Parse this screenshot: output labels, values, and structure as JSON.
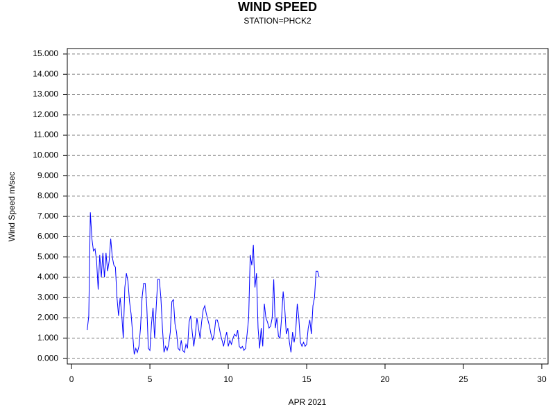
{
  "chart_data": {
    "type": "line",
    "title": "WIND SPEED",
    "subtitle": "STATION=PHCK2",
    "x_label": "APR 2021",
    "y_label": "Wind Speed m/sec",
    "color": "#0000ff",
    "grid": true,
    "x": [
      1.0,
      1.1,
      1.2,
      1.3,
      1.4,
      1.5,
      1.6,
      1.7,
      1.8,
      1.9,
      2.0,
      2.1,
      2.2,
      2.3,
      2.4,
      2.5,
      2.6,
      2.7,
      2.8,
      2.9,
      3.0,
      3.1,
      3.2,
      3.3,
      3.4,
      3.5,
      3.6,
      3.7,
      3.8,
      3.9,
      4.0,
      4.1,
      4.2,
      4.3,
      4.4,
      4.5,
      4.6,
      4.7,
      4.8,
      4.9,
      5.0,
      5.1,
      5.2,
      5.3,
      5.4,
      5.5,
      5.6,
      5.7,
      5.8,
      5.9,
      6.0,
      6.1,
      6.2,
      6.3,
      6.4,
      6.5,
      6.6,
      6.7,
      6.8,
      6.9,
      7.0,
      7.1,
      7.2,
      7.3,
      7.4,
      7.5,
      7.6,
      7.7,
      7.8,
      7.9,
      8.0,
      8.1,
      8.2,
      8.3,
      8.4,
      8.5,
      8.6,
      8.7,
      8.8,
      8.9,
      9.0,
      9.1,
      9.2,
      9.3,
      9.4,
      9.5,
      9.6,
      9.7,
      9.8,
      9.9,
      10.0,
      10.1,
      10.2,
      10.3,
      10.4,
      10.5,
      10.6,
      10.7,
      10.8,
      10.9,
      11.0,
      11.1,
      11.2,
      11.3,
      11.4,
      11.5,
      11.6,
      11.7,
      11.8,
      11.9,
      12.0,
      12.1,
      12.2,
      12.3,
      12.4,
      12.5,
      12.6,
      12.7,
      12.8,
      12.9,
      13.0,
      13.1,
      13.2,
      13.3,
      13.4,
      13.5,
      13.6,
      13.7,
      13.8,
      13.9,
      14.0,
      14.1,
      14.2,
      14.3,
      14.4,
      14.5,
      14.6,
      14.7,
      14.8,
      14.9,
      15.0,
      15.1,
      15.2,
      15.3,
      15.4,
      15.5,
      15.6,
      15.7,
      15.8
    ],
    "values": [
      1.4,
      2.1,
      7.2,
      5.9,
      5.3,
      5.4,
      4.8,
      3.4,
      5.1,
      4.0,
      5.2,
      4.0,
      5.2,
      4.3,
      4.8,
      5.9,
      5.0,
      4.6,
      4.5,
      3.0,
      2.1,
      3.0,
      2.2,
      1.0,
      3.5,
      4.2,
      3.8,
      2.8,
      2.2,
      1.2,
      0.2,
      0.5,
      0.3,
      0.6,
      1.5,
      3.0,
      3.7,
      3.7,
      2.6,
      0.5,
      0.4,
      1.7,
      2.5,
      1.0,
      2.5,
      3.9,
      3.9,
      3.0,
      1.5,
      0.3,
      0.6,
      0.4,
      0.7,
      1.3,
      2.8,
      2.9,
      1.7,
      1.3,
      0.5,
      0.4,
      0.9,
      0.4,
      0.3,
      0.7,
      0.5,
      1.8,
      2.1,
      1.3,
      0.6,
      1.2,
      2.0,
      1.5,
      1.0,
      1.8,
      2.4,
      2.6,
      2.2,
      1.9,
      1.6,
      1.2,
      0.9,
      1.2,
      1.9,
      1.9,
      1.6,
      1.2,
      0.9,
      0.6,
      1.0,
      1.3,
      0.6,
      0.9,
      0.7,
      1.0,
      1.2,
      1.1,
      1.4,
      0.6,
      0.5,
      0.6,
      0.4,
      0.5,
      1.2,
      2.0,
      5.1,
      4.6,
      5.6,
      3.5,
      4.2,
      1.5,
      0.5,
      1.5,
      0.6,
      2.7,
      2.0,
      1.8,
      1.5,
      1.6,
      2.0,
      3.9,
      1.5,
      2.0,
      1.1,
      1.0,
      2.0,
      3.3,
      2.5,
      1.2,
      1.5,
      0.8,
      0.3,
      1.3,
      0.8,
      1.3,
      2.7,
      2.0,
      0.8,
      0.6,
      0.8,
      0.6,
      0.7,
      1.5,
      1.9,
      1.2,
      2.6,
      3.0,
      4.3,
      4.3,
      4.0
    ],
    "xlim": [
      -0.27,
      30.4
    ],
    "xticks": [
      0,
      5,
      10,
      15,
      20,
      25,
      30
    ],
    "ylim": [
      -0.27,
      15.27
    ],
    "yticks": [
      {
        "value": 0,
        "label": "0.000"
      },
      {
        "value": 1,
        "label": "1.000"
      },
      {
        "value": 2,
        "label": "2.000"
      },
      {
        "value": 3,
        "label": "3.000"
      },
      {
        "value": 4,
        "label": "4.000"
      },
      {
        "value": 5,
        "label": "5.000"
      },
      {
        "value": 6,
        "label": "6.000"
      },
      {
        "value": 7,
        "label": "7.000"
      },
      {
        "value": 8,
        "label": "8.000"
      },
      {
        "value": 9,
        "label": "9.000"
      },
      {
        "value": 10,
        "label": "10.000"
      },
      {
        "value": 11,
        "label": "11.000"
      },
      {
        "value": 12,
        "label": "12.000"
      },
      {
        "value": 13,
        "label": "13.000"
      },
      {
        "value": 14,
        "label": "14.000"
      },
      {
        "value": 15,
        "label": "15.000"
      }
    ]
  }
}
